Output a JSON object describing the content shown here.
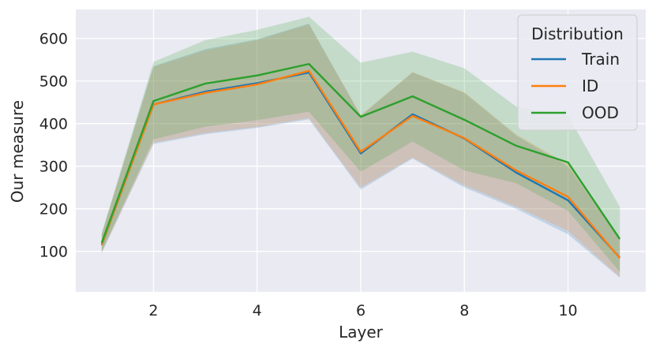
{
  "chart_data": {
    "type": "line",
    "xlabel": "Layer",
    "ylabel": "Our measure",
    "xlim": [
      0.5,
      11.5
    ],
    "ylim": [
      5,
      668
    ],
    "xticks": [
      2,
      4,
      6,
      8,
      10
    ],
    "yticks": [
      100,
      200,
      300,
      400,
      500,
      600
    ],
    "grid": true,
    "legend": {
      "title": "Distribution",
      "position": "top-right"
    },
    "x": [
      1,
      2,
      3,
      4,
      5,
      6,
      7,
      8,
      9,
      10,
      11
    ],
    "series": [
      {
        "name": "Train",
        "color": "#1f77b4",
        "values": [
          115,
          445,
          475,
          495,
          520,
          330,
          422,
          365,
          285,
          220,
          85
        ],
        "lower": [
          96,
          352,
          375,
          390,
          410,
          245,
          318,
          250,
          200,
          140,
          38
        ],
        "upper": [
          140,
          535,
          575,
          598,
          635,
          418,
          520,
          472,
          372,
          300,
          128
        ]
      },
      {
        "name": "ID",
        "color": "#ff7f0e",
        "values": [
          116,
          445,
          472,
          492,
          524,
          334,
          418,
          366,
          290,
          228,
          84
        ],
        "lower": [
          97,
          355,
          378,
          392,
          413,
          250,
          320,
          255,
          205,
          148,
          40
        ],
        "upper": [
          141,
          533,
          572,
          596,
          633,
          420,
          521,
          474,
          375,
          305,
          127
        ]
      },
      {
        "name": "OOD",
        "color": "#2ca02c",
        "values": [
          120,
          453,
          494,
          513,
          540,
          416,
          464,
          409,
          348,
          309,
          129
        ],
        "lower": [
          100,
          363,
          393,
          408,
          428,
          287,
          358,
          290,
          260,
          195,
          52
        ],
        "upper": [
          143,
          545,
          596,
          620,
          651,
          543,
          569,
          530,
          440,
          419,
          205
        ]
      }
    ]
  }
}
